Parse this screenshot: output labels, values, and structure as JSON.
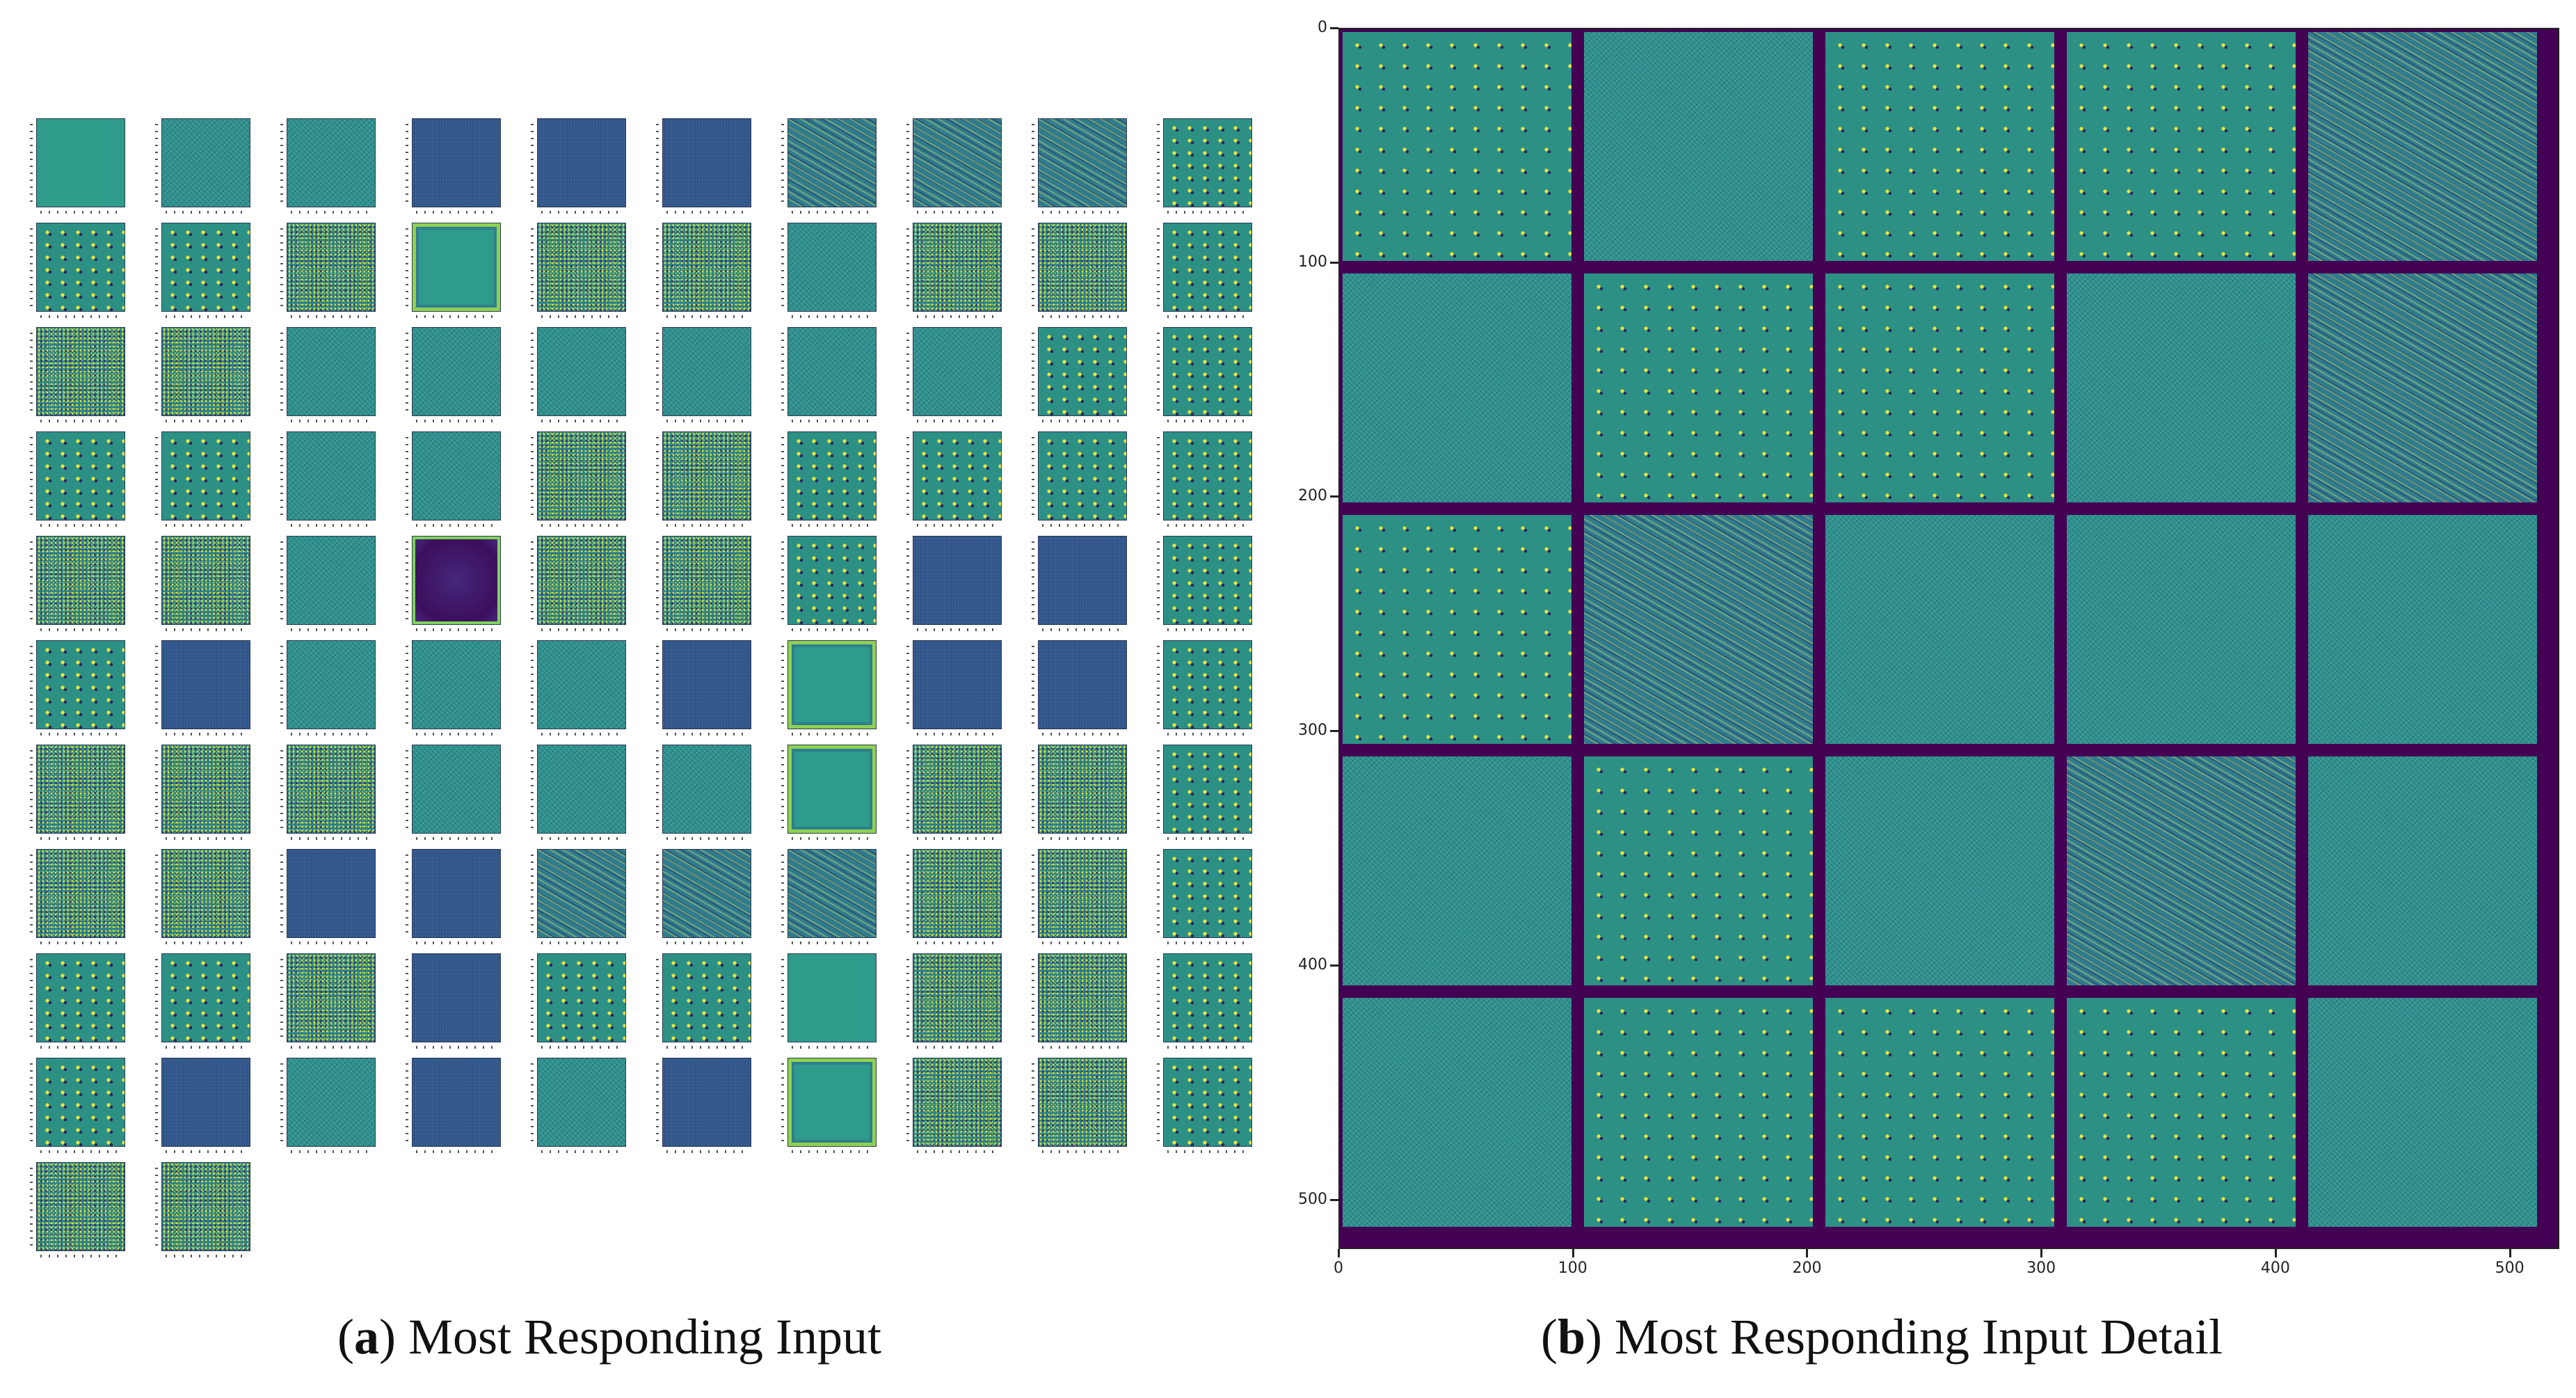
{
  "captions": {
    "a": {
      "letter": "a",
      "text": ") Most Responding Input"
    },
    "b": {
      "letter": "b",
      "text": ") Most Responding Input Detail"
    }
  },
  "panel_a": {
    "rows": [
      [
        "smooth",
        "fine",
        "fine",
        "dark",
        "dark",
        "dark",
        "stripe",
        "stripe",
        "stripe",
        "dots"
      ],
      [
        "dots",
        "dots",
        "noise",
        "frame",
        "noise",
        "noise",
        "fine",
        "noise",
        "noise",
        "dots"
      ],
      [
        "noise",
        "noise",
        "fine",
        "fine",
        "fine",
        "fine",
        "fine",
        "fine",
        "dots",
        "dots"
      ],
      [
        "dots",
        "dots",
        "fine",
        "fine",
        "noise",
        "noise",
        "dots",
        "dots",
        "dots",
        "dots"
      ],
      [
        "noise",
        "noise",
        "fine",
        "purple",
        "noise",
        "noise",
        "dots",
        "dark",
        "dark",
        "dots"
      ],
      [
        "dots",
        "dark",
        "fine",
        "fine",
        "fine",
        "dark",
        "frame",
        "dark",
        "dark",
        "dots"
      ],
      [
        "noise",
        "noise",
        "noise",
        "fine",
        "fine",
        "fine",
        "frame",
        "noise",
        "noise",
        "dots"
      ],
      [
        "noise",
        "noise",
        "dark",
        "dark",
        "stripe",
        "stripe",
        "stripe",
        "noise",
        "noise",
        "dots"
      ],
      [
        "dots",
        "dots",
        "noise",
        "dark",
        "dots",
        "dots",
        "smooth",
        "noise",
        "noise",
        "dots"
      ],
      [
        "dots",
        "dark",
        "fine",
        "dark",
        "fine",
        "dark",
        "frame",
        "noise",
        "noise",
        "dots"
      ],
      [
        "noise",
        "noise"
      ]
    ]
  },
  "panel_b": {
    "y_ticks": [
      "0",
      "100",
      "200",
      "300",
      "400",
      "500"
    ],
    "x_ticks": [
      "0",
      "100",
      "200",
      "300",
      "400",
      "500"
    ],
    "tiles": [
      [
        "dots",
        "fine",
        "dots",
        "dots",
        "stripe"
      ],
      [
        "fine",
        "dots",
        "dots",
        "fine",
        "stripe"
      ],
      [
        "dots",
        "stripe",
        "fine",
        "fine",
        "fine"
      ],
      [
        "fine",
        "dots",
        "fine",
        "stripe",
        "fine"
      ],
      [
        "fine",
        "dots",
        "dots",
        "dots",
        "fine"
      ]
    ]
  }
}
